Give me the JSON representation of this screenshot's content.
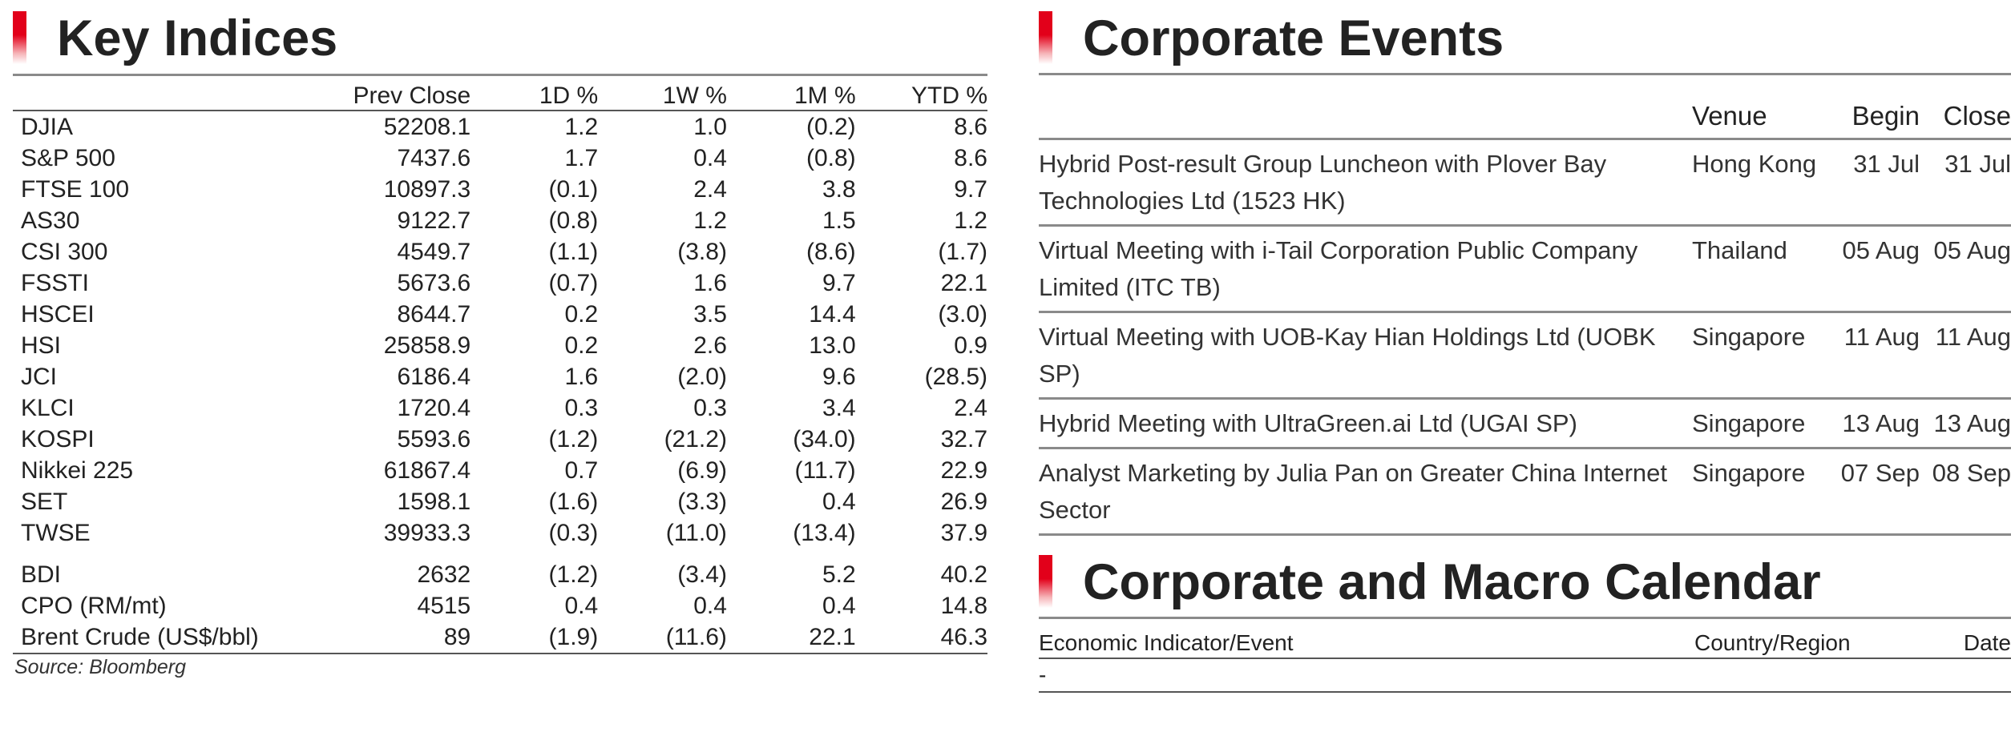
{
  "key_indices": {
    "title": "Key Indices",
    "columns": [
      "",
      "Prev Close",
      "1D %",
      "1W %",
      "1M %",
      "YTD %"
    ],
    "rows": [
      [
        "DJIA",
        "52208.1",
        "1.2",
        "1.0",
        "(0.2)",
        "8.6"
      ],
      [
        "S&P 500",
        "7437.6",
        "1.7",
        "0.4",
        "(0.8)",
        "8.6"
      ],
      [
        "FTSE 100",
        "10897.3",
        "(0.1)",
        "2.4",
        "3.8",
        "9.7"
      ],
      [
        "AS30",
        "9122.7",
        "(0.8)",
        "1.2",
        "1.5",
        "1.2"
      ],
      [
        "CSI 300",
        "4549.7",
        "(1.1)",
        "(3.8)",
        "(8.6)",
        "(1.7)"
      ],
      [
        "FSSTI",
        "5673.6",
        "(0.7)",
        "1.6",
        "9.7",
        "22.1"
      ],
      [
        "HSCEI",
        "8644.7",
        "0.2",
        "3.5",
        "14.4",
        "(3.0)"
      ],
      [
        "HSI",
        "25858.9",
        "0.2",
        "2.6",
        "13.0",
        "0.9"
      ],
      [
        "JCI",
        "6186.4",
        "1.6",
        "(2.0)",
        "9.6",
        "(28.5)"
      ],
      [
        "KLCI",
        "1720.4",
        "0.3",
        "0.3",
        "3.4",
        "2.4"
      ],
      [
        "KOSPI",
        "5593.6",
        "(1.2)",
        "(21.2)",
        "(34.0)",
        "32.7"
      ],
      [
        "Nikkei 225",
        "61867.4",
        "0.7",
        "(6.9)",
        "(11.7)",
        "22.9"
      ],
      [
        "SET",
        "1598.1",
        "(1.6)",
        "(3.3)",
        "0.4",
        "26.9"
      ],
      [
        "TWSE",
        "39933.3",
        "(0.3)",
        "(11.0)",
        "(13.4)",
        "37.9"
      ]
    ],
    "commodities": [
      [
        "BDI",
        "2632",
        "(1.2)",
        "(3.4)",
        "5.2",
        "40.2"
      ],
      [
        "CPO (RM/mt)",
        "4515",
        "0.4",
        "0.4",
        "0.4",
        "14.8"
      ],
      [
        "Brent Crude (US$/bbl)",
        "89",
        "(1.9)",
        "(11.6)",
        "22.1",
        "46.3"
      ]
    ],
    "source": "Source: Bloomberg"
  },
  "corporate_events": {
    "title": "Corporate Events",
    "columns": [
      "",
      "Venue",
      "Begin",
      "Close"
    ],
    "rows": [
      {
        "event": "Hybrid Post-result Group Luncheon with Plover Bay Technologies Ltd (1523 HK)",
        "venue": "Hong Kong",
        "begin": "31 Jul",
        "close": "31 Jul"
      },
      {
        "event": "Virtual Meeting with i-Tail Corporation Public Company Limited (ITC TB)",
        "venue": "Thailand",
        "begin": "05 Aug",
        "close": "05 Aug"
      },
      {
        "event": "Virtual Meeting with UOB-Kay Hian Holdings Ltd (UOBK SP)",
        "venue": "Singapore",
        "begin": "11 Aug",
        "close": "11 Aug"
      },
      {
        "event": "Hybrid Meeting with UltraGreen.ai Ltd (UGAI SP)",
        "venue": "Singapore",
        "begin": "13 Aug",
        "close": "13 Aug"
      },
      {
        "event": "Analyst Marketing by Julia Pan on Greater China Internet Sector",
        "venue": "Singapore",
        "begin": "07 Sep",
        "close": "08 Sep"
      }
    ]
  },
  "calendar": {
    "title": "Corporate and Macro Calendar",
    "columns": [
      "Economic Indicator/Event",
      "Country/Region",
      "Date"
    ],
    "rows": [
      [
        "-",
        "",
        ""
      ]
    ]
  },
  "colors": {
    "accent_red": "#e2001a",
    "rule_gray": "#8a8a8a",
    "text": "#222222"
  }
}
